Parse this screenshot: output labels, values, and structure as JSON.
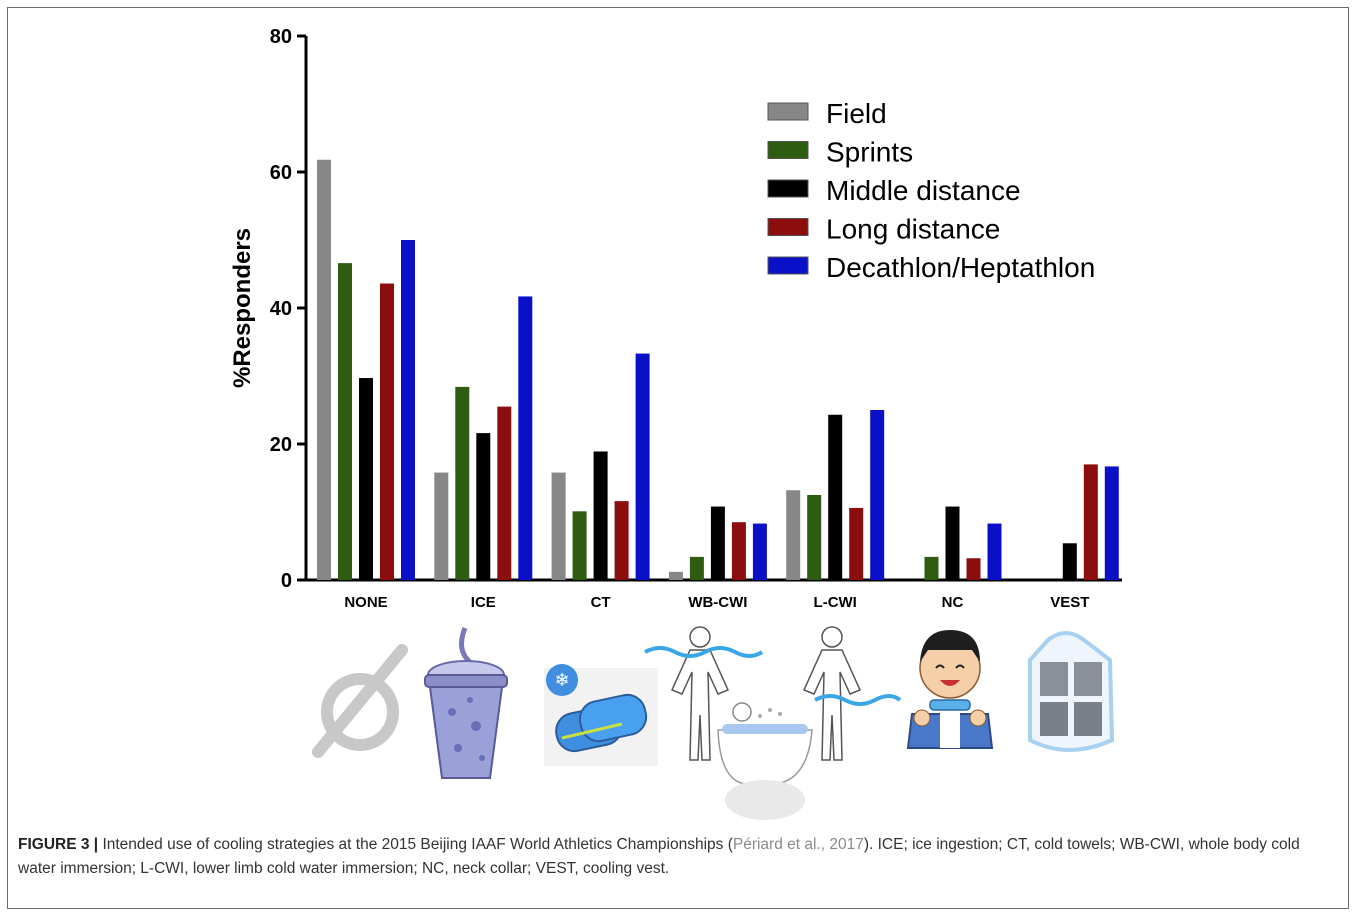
{
  "chart_data": {
    "type": "bar",
    "ylabel": "%Responders",
    "ylim": [
      0,
      80
    ],
    "yticks": [
      0,
      20,
      40,
      60,
      80
    ],
    "grid": false,
    "legend_position": "top-right",
    "categories": [
      "NONE",
      "ICE",
      "CT",
      "WB-CWI",
      "L-CWI",
      "NC",
      "VEST"
    ],
    "series": [
      {
        "name": "Field",
        "color": "#878787",
        "values": [
          61.8,
          15.8,
          15.8,
          1.2,
          13.2,
          0,
          0
        ]
      },
      {
        "name": "Sprints",
        "color": "#2e5c10",
        "values": [
          46.6,
          28.4,
          10.1,
          3.4,
          12.5,
          3.4,
          0
        ]
      },
      {
        "name": "Middle distance",
        "color": "#000000",
        "values": [
          29.7,
          21.6,
          18.9,
          10.8,
          24.3,
          10.8,
          5.4
        ]
      },
      {
        "name": "Long distance",
        "color": "#8b0d0d",
        "values": [
          43.6,
          25.5,
          11.6,
          8.5,
          10.6,
          3.2,
          17.0
        ]
      },
      {
        "name": "Decathlon/Heptathlon",
        "color": "#0a10c8",
        "values": [
          50.0,
          41.7,
          33.3,
          8.3,
          25.0,
          8.3,
          16.7
        ]
      }
    ]
  },
  "caption": {
    "label": "FIGURE 3 |",
    "text_before": " Intended use of cooling strategies at the 2015 Beijing IAAF World Athletics Championships (",
    "reference": "Périard et al., 2017",
    "text_after": "). ICE; ice ingestion; CT, cold towels; WB-CWI, whole body cold water immersion; L-CWI, lower limb cold water immersion; NC, neck collar; VEST, cooling vest."
  },
  "icons": [
    "null-symbol-icon",
    "iced-drink-icon",
    "cold-towels-icon",
    "whole-body-immersion-icon",
    "lower-limb-immersion-icon",
    "neck-collar-person-icon",
    "cooling-vest-icon"
  ]
}
